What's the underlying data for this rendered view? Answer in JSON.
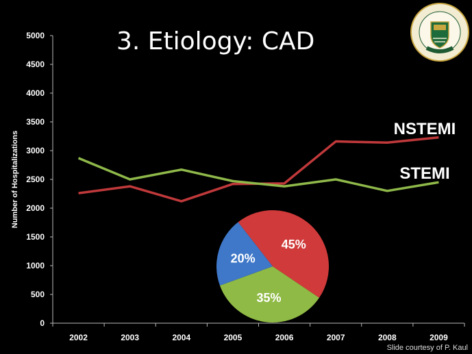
{
  "slide": {
    "title": "3. Etiology: CAD",
    "footer": "Slide courtesy of P. Kaul"
  },
  "logo": {
    "top_text": "UNIVERSITY OF ALBERTA",
    "motto": "QUAECUMQUE VERA"
  },
  "colors": {
    "background": "#000000",
    "nstemi": "#c0393b",
    "stemi": "#8fb84a",
    "pie_red": "#d13a3a",
    "pie_green": "#8fba45",
    "pie_blue": "#3f78c8"
  },
  "chart_data": [
    {
      "type": "line",
      "x": [
        "2002",
        "2003",
        "2004",
        "2005",
        "2006",
        "2007",
        "2008",
        "2009"
      ],
      "series": [
        {
          "name": "NSTEMI",
          "values": [
            2260,
            2380,
            2120,
            2420,
            2430,
            3160,
            3140,
            3230
          ]
        },
        {
          "name": "STEMI",
          "values": [
            2870,
            2500,
            2670,
            2470,
            2380,
            2500,
            2300,
            2450
          ]
        }
      ],
      "ylabel": "Number of Hospitalizations",
      "xlabel": "",
      "ylim": [
        0,
        5000
      ],
      "yticks": [
        0,
        500,
        1000,
        1500,
        2000,
        2500,
        3000,
        3500,
        4000,
        4500,
        5000
      ],
      "grid": false
    },
    {
      "type": "pie",
      "slices": [
        {
          "label": "45%",
          "value": 45
        },
        {
          "label": "35%",
          "value": 35
        },
        {
          "label": "20%",
          "value": 20
        }
      ]
    }
  ]
}
